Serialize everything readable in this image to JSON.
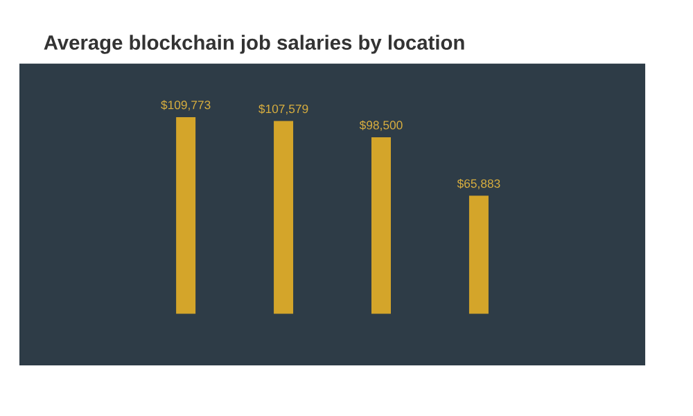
{
  "chart_data": {
    "type": "bar",
    "title": "Average blockchain job salaries by location",
    "categories": [
      null,
      null,
      null,
      null
    ],
    "values": [
      109773,
      107579,
      98500,
      65883
    ],
    "value_labels": [
      "$109,773",
      "$107,579",
      "$98,500",
      "$65,883"
    ],
    "color": "#d4a52a"
  }
}
